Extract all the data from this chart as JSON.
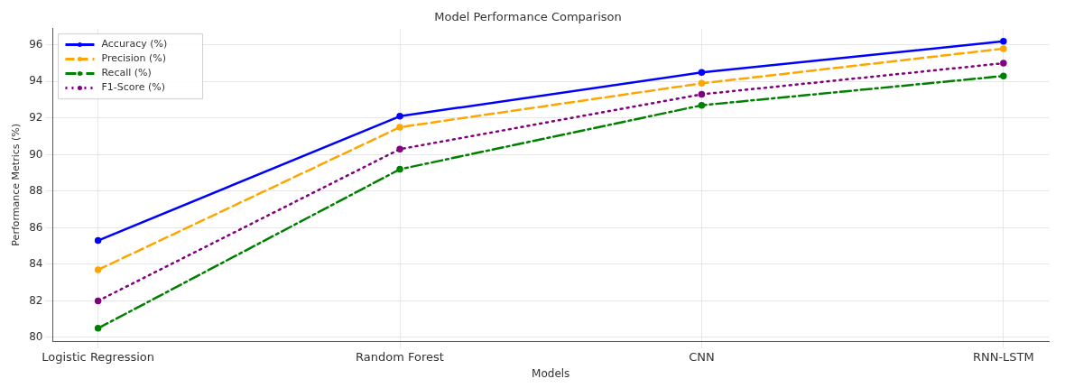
{
  "chart_data": {
    "type": "line",
    "title": "Model Performance Comparison",
    "xlabel": "Models",
    "ylabel": "Performance Metrics (%)",
    "categories": [
      "Logistic Regression",
      "Random Forest",
      "CNN",
      "RNN-LSTM"
    ],
    "series": [
      {
        "name": "Accuracy (%)",
        "color": "#0000ff",
        "values": [
          85.3,
          92.1,
          94.5,
          96.2
        ],
        "line_style": "solid"
      },
      {
        "name": "Precision (%)",
        "color": "#ffa500",
        "values": [
          83.7,
          91.5,
          93.9,
          95.8
        ],
        "line_style": "dashed"
      },
      {
        "name": "Recall (%)",
        "color": "#008000",
        "values": [
          80.5,
          89.2,
          92.7,
          94.3
        ],
        "line_style": "dashdot"
      },
      {
        "name": "F1-Score (%)",
        "color": "#800080",
        "values": [
          82.0,
          90.3,
          93.3,
          95.0
        ],
        "line_style": "dotted"
      }
    ],
    "ylim": [
      79.8,
      96.9
    ],
    "yticks": [
      80,
      82,
      84,
      86,
      88,
      90,
      92,
      94,
      96
    ],
    "grid": true,
    "legend": "top left",
    "marker": "circle"
  }
}
